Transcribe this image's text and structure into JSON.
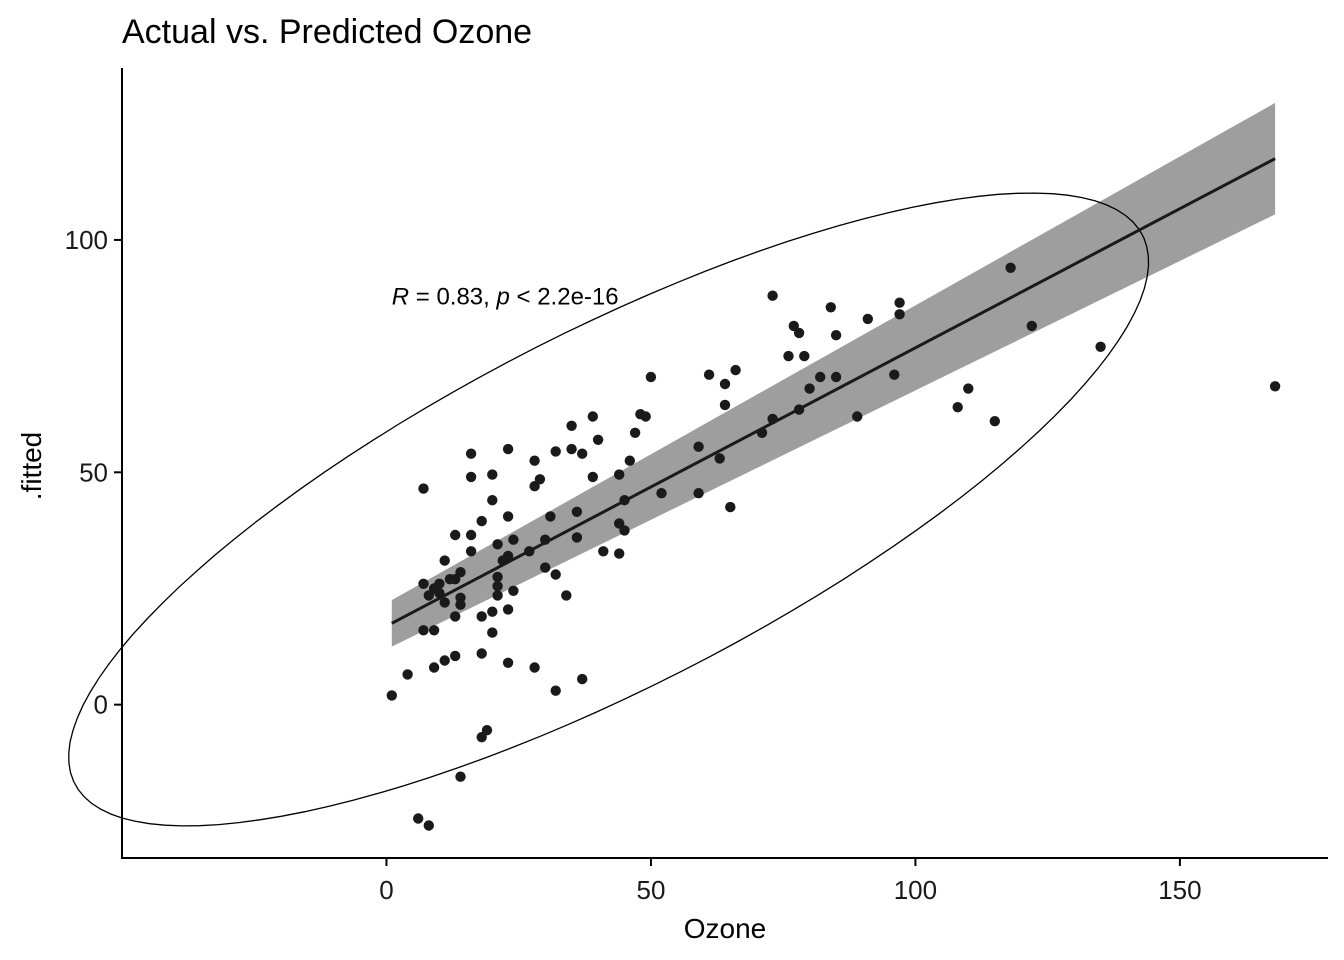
{
  "chart_data": {
    "type": "scatter",
    "title": "Actual vs. Predicted Ozone",
    "xlabel": "Ozone",
    "ylabel": ".fitted",
    "xlim": [
      -50,
      178
    ],
    "ylim": [
      -33,
      137
    ],
    "x_ticks": [
      0,
      50,
      100,
      150
    ],
    "y_ticks": [
      0,
      50,
      100
    ],
    "x_tick_labels": [
      "0",
      "50",
      "100",
      "150"
    ],
    "y_tick_labels": [
      "0",
      "50",
      "100"
    ],
    "grid": false,
    "annotation": {
      "r_symbol": "R",
      "r_text": " = 0.83, ",
      "p_symbol": "p",
      "p_text": " < 2.2e-16",
      "x": 1,
      "y": 88
    },
    "regression": {
      "x_start": 1,
      "y_start": 17.5,
      "x_end": 168,
      "y_end": 117.5,
      "ci_start": [
        12.5,
        22.5
      ],
      "ci_end": [
        105.5,
        129.5
      ]
    },
    "ellipse": {
      "cx": 42,
      "cy": 42,
      "semi_major": 117,
      "semi_minor": 37,
      "angle_deg": 31
    },
    "colors": {
      "points": "#1a1a1a",
      "ribbon": "#999999",
      "line": "#1a1a1a"
    },
    "points": [
      [
        1,
        2
      ],
      [
        4,
        6.5
      ],
      [
        6,
        -24.5
      ],
      [
        7,
        26
      ],
      [
        7,
        46.5
      ],
      [
        7,
        16
      ],
      [
        8,
        -26
      ],
      [
        8,
        23.5
      ],
      [
        9,
        8
      ],
      [
        9,
        16
      ],
      [
        9,
        25
      ],
      [
        10,
        24
      ],
      [
        10,
        26
      ],
      [
        11,
        9.5
      ],
      [
        11,
        22
      ],
      [
        11,
        31
      ],
      [
        12,
        27
      ],
      [
        13,
        10.5
      ],
      [
        13,
        19
      ],
      [
        13,
        27
      ],
      [
        13,
        36.5
      ],
      [
        14,
        21.5
      ],
      [
        14,
        23
      ],
      [
        14,
        28.5
      ],
      [
        14,
        -15.5
      ],
      [
        16,
        33
      ],
      [
        16,
        36.5
      ],
      [
        16,
        49
      ],
      [
        16,
        54
      ],
      [
        18,
        11
      ],
      [
        18,
        19
      ],
      [
        18,
        39.5
      ],
      [
        18,
        -7
      ],
      [
        19,
        -5.5
      ],
      [
        20,
        15.5
      ],
      [
        20,
        20
      ],
      [
        20,
        44
      ],
      [
        20,
        49.5
      ],
      [
        21,
        23.5
      ],
      [
        21,
        25.5
      ],
      [
        21,
        27.5
      ],
      [
        21,
        34.5
      ],
      [
        22,
        31
      ],
      [
        23,
        9
      ],
      [
        23,
        20.5
      ],
      [
        23,
        32
      ],
      [
        23,
        40.5
      ],
      [
        23,
        55
      ],
      [
        24,
        24.5
      ],
      [
        24,
        35.5
      ],
      [
        27,
        33
      ],
      [
        28,
        8
      ],
      [
        28,
        47
      ],
      [
        28,
        52.5
      ],
      [
        29,
        48.5
      ],
      [
        30,
        29.5
      ],
      [
        30,
        35.5
      ],
      [
        31,
        40.5
      ],
      [
        32,
        3
      ],
      [
        32,
        28
      ],
      [
        32,
        54.5
      ],
      [
        34,
        23.5
      ],
      [
        35,
        55
      ],
      [
        35,
        60
      ],
      [
        36,
        36
      ],
      [
        36,
        41.5
      ],
      [
        37,
        5.5
      ],
      [
        37,
        54
      ],
      [
        39,
        49
      ],
      [
        39,
        62
      ],
      [
        40,
        57
      ],
      [
        41,
        33
      ],
      [
        44,
        32.5
      ],
      [
        44,
        39
      ],
      [
        44,
        49.5
      ],
      [
        45,
        37.5
      ],
      [
        45,
        44
      ],
      [
        46,
        52.5
      ],
      [
        47,
        58.5
      ],
      [
        48,
        62.5
      ],
      [
        49,
        62
      ],
      [
        50,
        70.5
      ],
      [
        52,
        45.5
      ],
      [
        59,
        45.5
      ],
      [
        59,
        55.5
      ],
      [
        61,
        71
      ],
      [
        63,
        53
      ],
      [
        64,
        64.5
      ],
      [
        64,
        69
      ],
      [
        65,
        42.5
      ],
      [
        66,
        72
      ],
      [
        71,
        58.5
      ],
      [
        73,
        61.5
      ],
      [
        73,
        88
      ],
      [
        76,
        75
      ],
      [
        77,
        81.5
      ],
      [
        78,
        80
      ],
      [
        78,
        63.5
      ],
      [
        79,
        75
      ],
      [
        80,
        68
      ],
      [
        82,
        70.5
      ],
      [
        84,
        85.5
      ],
      [
        85,
        70.5
      ],
      [
        85,
        79.5
      ],
      [
        89,
        62
      ],
      [
        91,
        83
      ],
      [
        96,
        71
      ],
      [
        97,
        84
      ],
      [
        97,
        86.5
      ],
      [
        108,
        64
      ],
      [
        110,
        68
      ],
      [
        115,
        61
      ],
      [
        118,
        94
      ],
      [
        122,
        81.5
      ],
      [
        135,
        77
      ],
      [
        168,
        68.5
      ]
    ]
  }
}
